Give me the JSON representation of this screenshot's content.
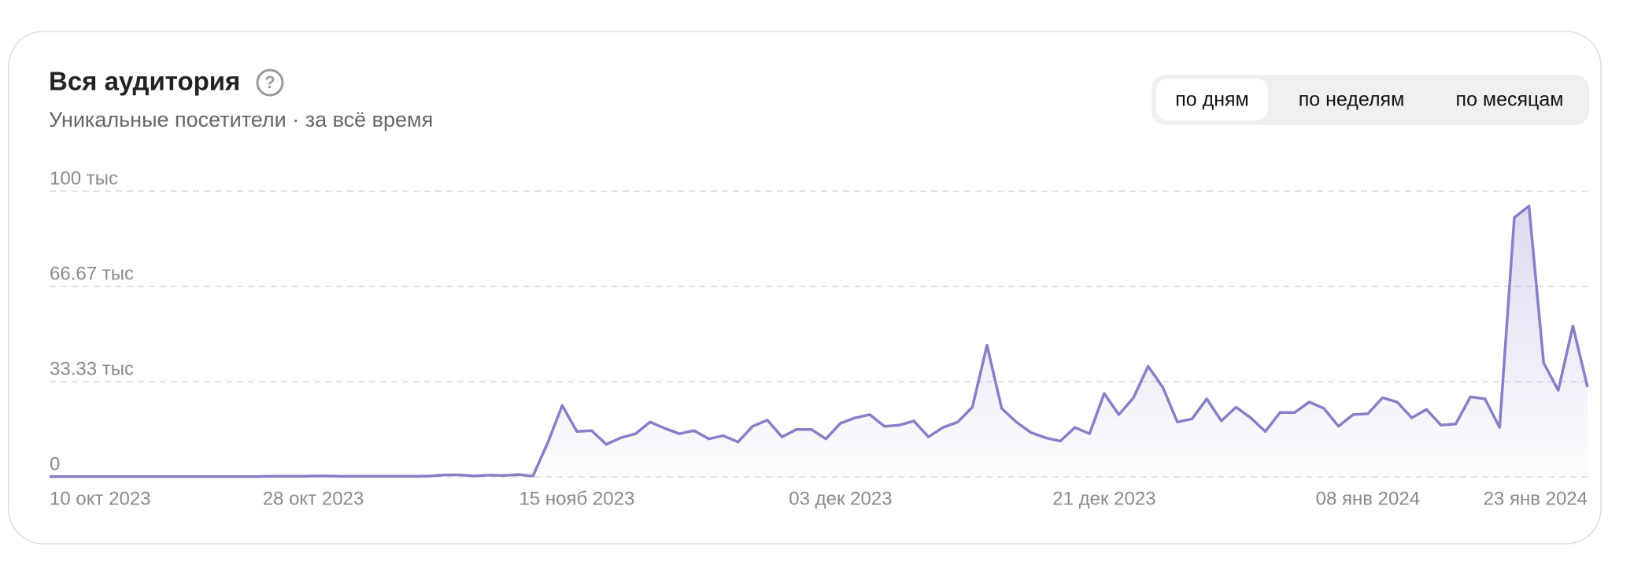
{
  "title": "Вся аудитория",
  "help": "?",
  "subtitle": "Уникальные посетители · за всё время",
  "toggle": {
    "options": [
      "по дням",
      "по неделям",
      "по месяцам"
    ],
    "selected": 0
  },
  "chart_data": {
    "type": "line",
    "color": "#8580c8",
    "grid": true,
    "xlim": [
      "2023-10-10",
      "2024-01-23"
    ],
    "xticks": [
      {
        "value": "2023-10-10",
        "label": "10 окт 2023"
      },
      {
        "value": "2023-10-28",
        "label": "28 окт 2023"
      },
      {
        "value": "2023-11-15",
        "label": "15 нояб 2023"
      },
      {
        "value": "2023-12-03",
        "label": "03 дек 2023"
      },
      {
        "value": "2023-12-21",
        "label": "21 дек 2023"
      },
      {
        "value": "2024-01-08",
        "label": "08 янв 2024"
      },
      {
        "value": "2024-01-23",
        "label": "23 янв 2024"
      }
    ],
    "ylim": [
      0,
      100000
    ],
    "yticks": [
      0,
      {
        "value": 33333.33,
        "label": "33.33 тыс"
      },
      {
        "value": 66666.67,
        "label": "66.67 тыс"
      },
      {
        "value": 100000,
        "label": "100 тыс"
      }
    ],
    "x": [
      "2023-10-10",
      "2023-10-11",
      "2023-10-12",
      "2023-10-13",
      "2023-10-14",
      "2023-10-15",
      "2023-10-16",
      "2023-10-17",
      "2023-10-18",
      "2023-10-19",
      "2023-10-20",
      "2023-10-21",
      "2023-10-22",
      "2023-10-23",
      "2023-10-24",
      "2023-10-25",
      "2023-10-26",
      "2023-10-27",
      "2023-10-28",
      "2023-10-29",
      "2023-10-30",
      "2023-10-31",
      "2023-11-01",
      "2023-11-02",
      "2023-11-03",
      "2023-11-04",
      "2023-11-05",
      "2023-11-06",
      "2023-11-07",
      "2023-11-08",
      "2023-11-09",
      "2023-11-10",
      "2023-11-11",
      "2023-11-12",
      "2023-11-13",
      "2023-11-14",
      "2023-11-15",
      "2023-11-16",
      "2023-11-17",
      "2023-11-18",
      "2023-11-19",
      "2023-11-20",
      "2023-11-21",
      "2023-11-22",
      "2023-11-23",
      "2023-11-24",
      "2023-11-25",
      "2023-11-26",
      "2023-11-27",
      "2023-11-28",
      "2023-11-29",
      "2023-11-30",
      "2023-12-01",
      "2023-12-02",
      "2023-12-03",
      "2023-12-04",
      "2023-12-05",
      "2023-12-06",
      "2023-12-07",
      "2023-12-08",
      "2023-12-09",
      "2023-12-10",
      "2023-12-11",
      "2023-12-12",
      "2023-12-13",
      "2023-12-14",
      "2023-12-15",
      "2023-12-16",
      "2023-12-17",
      "2023-12-18",
      "2023-12-19",
      "2023-12-20",
      "2023-12-21",
      "2023-12-22",
      "2023-12-23",
      "2023-12-24",
      "2023-12-25",
      "2023-12-26",
      "2023-12-27",
      "2023-12-28",
      "2023-12-29",
      "2023-12-30",
      "2023-12-31",
      "2024-01-01",
      "2024-01-02",
      "2024-01-03",
      "2024-01-04",
      "2024-01-05",
      "2024-01-06",
      "2024-01-07",
      "2024-01-08",
      "2024-01-09",
      "2024-01-10",
      "2024-01-11",
      "2024-01-12",
      "2024-01-13",
      "2024-01-14",
      "2024-01-15",
      "2024-01-16",
      "2024-01-17",
      "2024-01-18",
      "2024-01-19",
      "2024-01-20",
      "2024-01-21",
      "2024-01-22",
      "2024-01-23"
    ],
    "values": [
      100,
      100,
      100,
      100,
      100,
      100,
      100,
      100,
      100,
      100,
      100,
      100,
      100,
      100,
      100,
      200,
      200,
      200,
      300,
      300,
      200,
      200,
      200,
      200,
      200,
      200,
      300,
      700,
      700,
      300,
      600,
      500,
      800,
      300,
      11800,
      25000,
      15900,
      16200,
      11400,
      13700,
      15100,
      19200,
      17000,
      15100,
      16200,
      13300,
      14400,
      12200,
      17700,
      19900,
      14000,
      16600,
      16600,
      13300,
      18800,
      20700,
      21800,
      17700,
      18100,
      19600,
      14000,
      17300,
      19200,
      24400,
      46100,
      24000,
      19200,
      15500,
      13700,
      12500,
      17300,
      15100,
      29200,
      21800,
      27700,
      38700,
      31400,
      19200,
      20300,
      27300,
      19600,
      24400,
      20700,
      15900,
      22500,
      22500,
      26200,
      24000,
      17700,
      21800,
      22100,
      27700,
      26200,
      20700,
      23600,
      18100,
      18500,
      28000,
      27300,
      17300,
      90800,
      94800,
      39900,
      30300,
      52800,
      31400
    ]
  }
}
